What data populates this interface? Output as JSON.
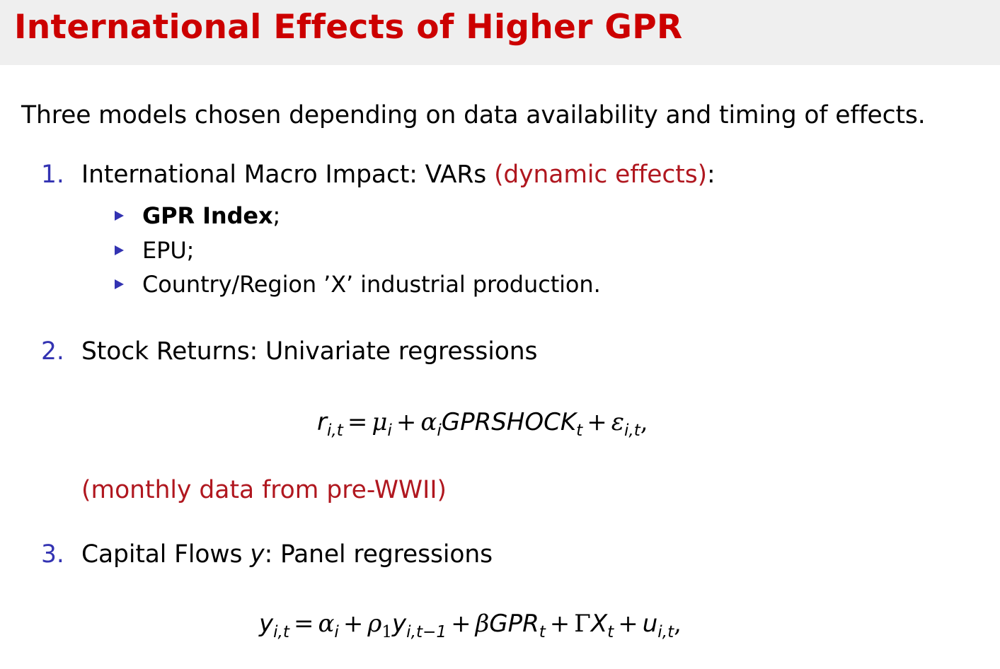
{
  "slide": {
    "title": "International Effects of Higher GPR",
    "intro": "Three models chosen depending on data availability and timing of effects.",
    "colors": {
      "title": "#cc0000",
      "accent_red": "#b0171f",
      "number_blue": "#3333b2",
      "bullet_blue": "#3333b2",
      "header_bg": "#efefef"
    },
    "items": [
      {
        "number": "1.",
        "text": "International Macro Impact: VARs",
        "highlight": "(dynamic effects)",
        "suffix": ":",
        "bullets": [
          {
            "bold": "GPR Index",
            "text": ";"
          },
          {
            "bold": "",
            "text": "EPU;"
          },
          {
            "bold": "",
            "text": "Country/Region ’X’ industrial production."
          }
        ]
      },
      {
        "number": "2.",
        "text": "Stock Returns: Univariate regressions"
      },
      {
        "number": "3.",
        "text_before": "Capital Flows ",
        "text_var": "y",
        "text_after": ": Panel regressions"
      }
    ],
    "note": "(monthly data from pre-WWII)",
    "equation_1": "r_{i,t} = μ_i + α_i GPRSHOCK_t + ε_{i,t},",
    "equation_2": "y_{i,t} = α_i + ρ_1 y_{i,t−1} + βGPR_t + ΓX_t + u_{i,t},"
  }
}
